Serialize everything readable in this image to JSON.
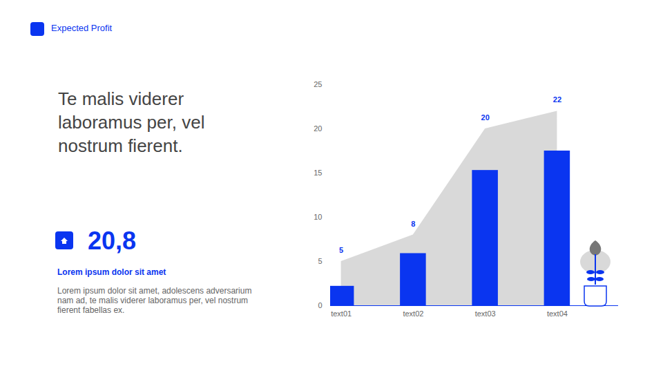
{
  "chart_data": {
    "type": "bar",
    "categories": [
      "text01",
      "text02",
      "text03",
      "text04"
    ],
    "ylim": [
      0,
      25
    ],
    "yticks": [
      0,
      5,
      10,
      15,
      20,
      25
    ],
    "series": [
      {
        "type": "area",
        "color": "#d9d9d9",
        "values": [
          5,
          8,
          20,
          22
        ],
        "data_labels": true
      },
      {
        "type": "bar",
        "color": "#0a35f0",
        "values": [
          2.2,
          5.9,
          15.3,
          17.5
        ]
      }
    ]
  },
  "page": {
    "header": "Expected Profit",
    "heading": "Te malis viderer laboramus per, vel nostrum fierent.",
    "stat": "20,8",
    "subheading": "Lorem ipsum dolor sit amet",
    "body": "Lorem ipsum dolor sit amet, adolescens adversarium nam ad, te malis viderer laboramus per, vel nostrum fierent fabellas ex."
  }
}
